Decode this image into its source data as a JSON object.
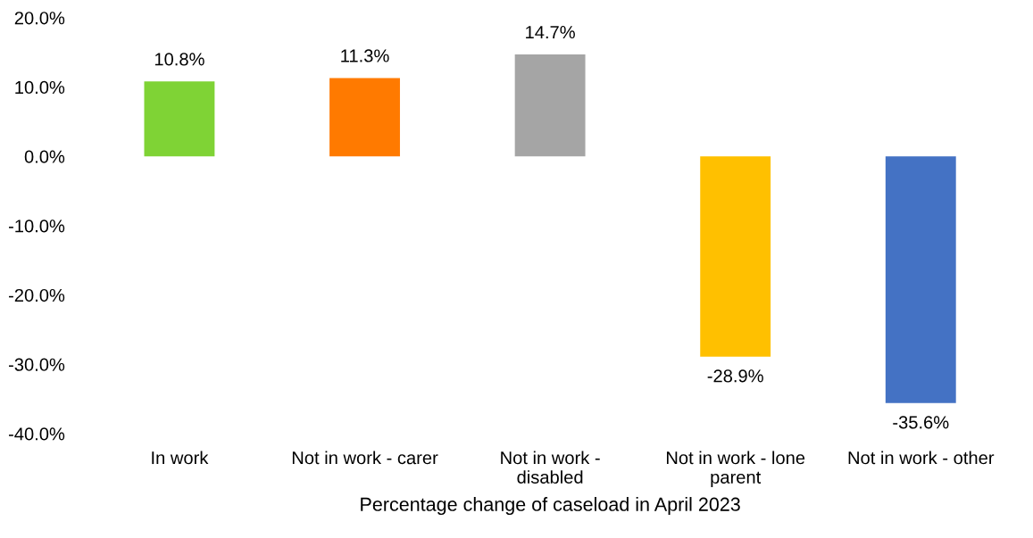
{
  "chart_data": {
    "type": "bar",
    "xlabel": "Percentage change of caseload in April 2023",
    "categories": [
      "In work",
      "Not in work - carer",
      "Not in work -\ndisabled",
      "Not in work - lone\nparent",
      "Not in work - other"
    ],
    "values": [
      10.8,
      11.3,
      14.7,
      -28.9,
      -35.6
    ],
    "colors": [
      "#7fd335",
      "#ff7a00",
      "#a5a5a5",
      "#ffc000",
      "#4472c4"
    ],
    "value_labels": [
      "10.8%",
      "11.3%",
      "14.7%",
      "-28.9%",
      "-35.6%"
    ],
    "ylim": [
      -40,
      20
    ],
    "yticks": [
      {
        "value": -40,
        "label": "-40.0%"
      },
      {
        "value": -30,
        "label": "-30.0%"
      },
      {
        "value": -20,
        "label": "-20.0%"
      },
      {
        "value": -10,
        "label": "-10.0%"
      },
      {
        "value": 0,
        "label": "0.0%"
      },
      {
        "value": 10,
        "label": "10.0%"
      },
      {
        "value": 20,
        "label": "20.0%"
      }
    ],
    "grid": false,
    "legend": false
  }
}
